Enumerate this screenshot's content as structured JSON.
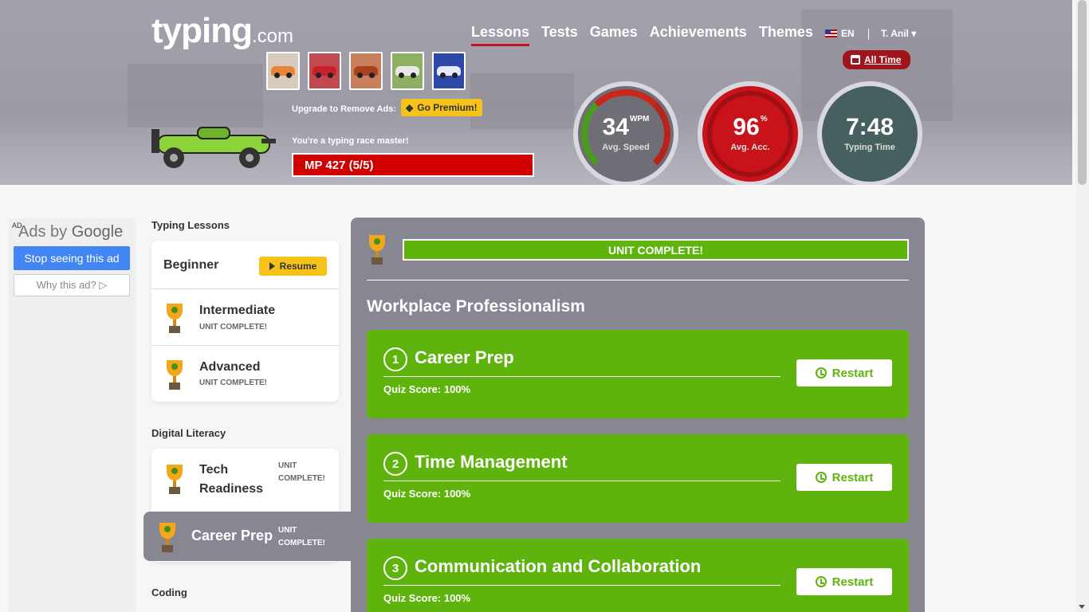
{
  "header": {
    "logo_main": "typing",
    "logo_suffix": ".com",
    "upgrade_text": "Upgrade to Remove Ads:",
    "premium_label": "Go Premium!",
    "master_text": "You're a typing race master!",
    "mp_text": "MP 427 (5/5)",
    "nav": [
      "Lessons",
      "Tests",
      "Games",
      "Achievements",
      "Themes"
    ],
    "lang": "EN",
    "user": "T. Anil",
    "alltime_label": "All Time",
    "car_colors": [
      "#e8843a",
      "#c8202b",
      "#d06a3c",
      "#8ab84a",
      "#1f3a9c"
    ],
    "gauges": {
      "speed": {
        "value": "34",
        "unit": "WPM",
        "label": "Avg. Speed"
      },
      "accuracy": {
        "value": "96",
        "unit": "%",
        "label": "Avg. Acc."
      },
      "time": {
        "value": "7:48",
        "label": "Typing Time"
      }
    }
  },
  "ad": {
    "badge": "AD",
    "ads_by": "Ads by",
    "brand": "Google",
    "stop_label": "Stop seeing this ad",
    "why_label": "Why this ad? ▷"
  },
  "sidebar": {
    "section_typing": "Typing Lessons",
    "typing_items": [
      {
        "name": "Beginner",
        "action": "Resume"
      },
      {
        "name": "Intermediate",
        "status": "UNIT COMPLETE!"
      },
      {
        "name": "Advanced",
        "status": "UNIT COMPLETE!"
      }
    ],
    "section_digital": "Digital Literacy",
    "digital_items": [
      {
        "name_line1": "Tech",
        "name_line2": "Readiness",
        "status_line1": "UNIT",
        "status_line2": "COMPLETE!"
      },
      {
        "name": "Career Prep",
        "status_line1": "UNIT",
        "status_line2": "COMPLETE!"
      }
    ],
    "section_coding": "Coding"
  },
  "main": {
    "unit_status": "UNIT COMPLETE!",
    "title": "Workplace Professionalism",
    "lessons": [
      {
        "num": "1",
        "title": "Career Prep",
        "score": "Quiz Score: 100%",
        "action": "Restart"
      },
      {
        "num": "2",
        "title": "Time Management",
        "score": "Quiz Score: 100%",
        "action": "Restart"
      },
      {
        "num": "3",
        "title": "Communication and Collaboration",
        "score": "Quiz Score: 100%",
        "action": "Restart"
      }
    ]
  },
  "colors": {
    "accent_green": "#5eb40d",
    "accent_red": "#d00000",
    "panel_gray": "#888690",
    "premium_yellow": "#f7c21a"
  }
}
